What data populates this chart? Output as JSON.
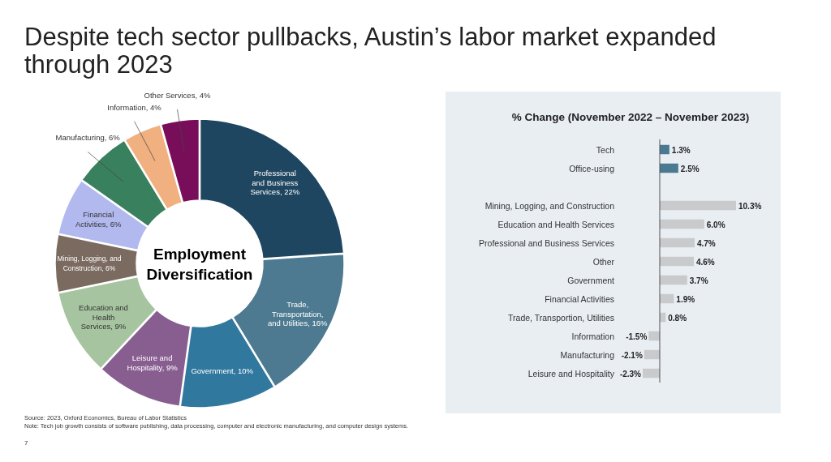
{
  "chart_data": [
    {
      "type": "donut",
      "title": "Despite tech sector pullbacks, Austin’s labor market expanded through 2023",
      "subtitle": "Employment Diversification",
      "categories": [
        "Professional and Business Services",
        "Trade, Transportation, and Utilities",
        "Government",
        "Leisure and Hospitality",
        "Education and Health Services",
        "Mining, Logging, and Construction",
        "Financial Activities",
        "Manufacturing",
        "Information",
        "Other Services"
      ],
      "values": [
        22,
        16,
        10,
        9,
        9,
        6,
        6,
        6,
        4,
        4
      ],
      "value_labels": [
        "22%",
        "16%",
        "10%",
        "9%",
        "9%",
        "6%",
        "6%",
        "6%",
        "4%",
        "4%"
      ],
      "colors": [
        "#1f4660",
        "#4d7a90",
        "#30789e",
        "#885e91",
        "#a7c4a0",
        "#7a6a60",
        "#b1b9ee",
        "#38805e",
        "#f0b080",
        "#780e5a"
      ],
      "annotations": [
        "Source: 2023, Oxford Economics, Bureau of Labor Statistics",
        "Note: Tech job growth consists of software publishing, data processing, computer and electronic manufacturing, and computer design systems.",
        "7"
      ]
    },
    {
      "type": "bar",
      "orientation": "horizontal",
      "title": "% Change (November 2022 – November 2023)",
      "categories": [
        "Tech",
        "Office-using",
        null,
        "Mining, Logging, and Construction",
        "Education and Health Services",
        "Professional and Business Services",
        "Other",
        "Government",
        "Financial Activities",
        "Trade, Transportion, Utilities",
        "Information",
        "Manufacturing",
        "Leisure and Hospitality"
      ],
      "values": [
        1.3,
        2.5,
        null,
        10.3,
        6.0,
        4.7,
        4.6,
        3.7,
        1.9,
        0.8,
        -1.5,
        -2.1,
        -2.3
      ],
      "value_labels": [
        "1.3%",
        "2.5%",
        null,
        "10.3%",
        "6.0%",
        "4.7%",
        "4.6%",
        "3.7%",
        "1.9%",
        "0.8%",
        "-1.5%",
        "-2.1%",
        "-2.3%"
      ],
      "colors": [
        "#4a7a92",
        "#4a7a92",
        null,
        "#c9cacc",
        "#c9cacc",
        "#c9cacc",
        "#c9cacc",
        "#c9cacc",
        "#c9cacc",
        "#c9cacc",
        "#c9cacc",
        "#c9cacc",
        "#c9cacc"
      ]
    }
  ]
}
